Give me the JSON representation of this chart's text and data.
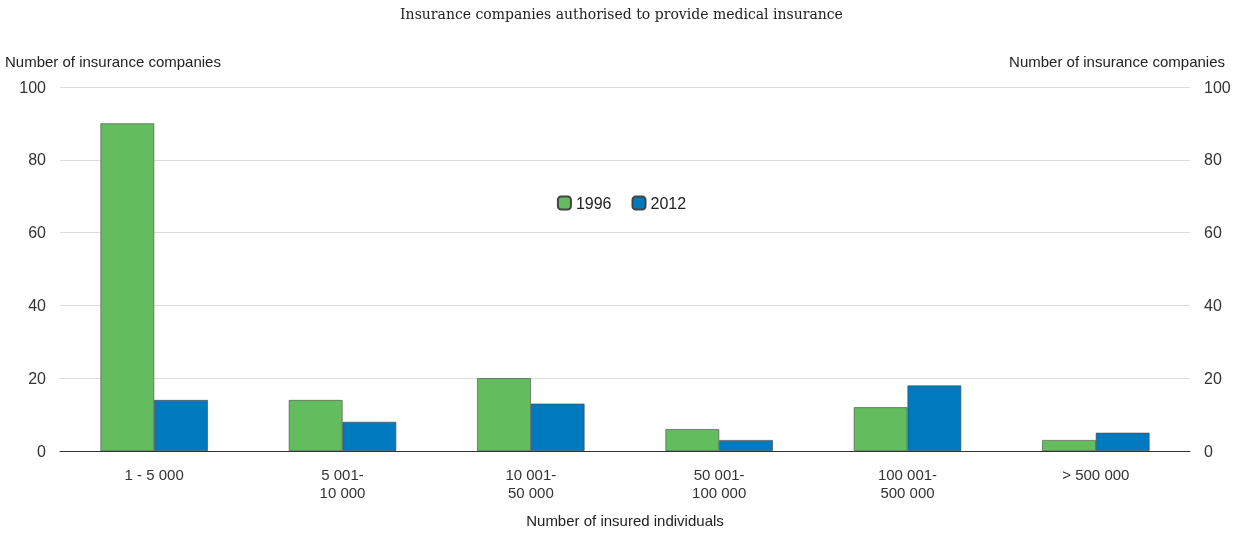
{
  "chart_data": {
    "type": "bar",
    "subtitle": "Insurance companies authorised to provide medical insurance",
    "xlabel": "Number of insured individuals",
    "ylabel": "Number of insurance companies",
    "y2label": "Number of insurance companies",
    "categories": [
      "1 - 5 000",
      "5 001-\n10 000",
      "10 001-\n50 000",
      "50 001-\n100 000",
      "100 001-\n500 000",
      "> 500 000"
    ],
    "series": [
      {
        "name": "1996",
        "color": "#63bd5f",
        "values": [
          90,
          14,
          20,
          6,
          12,
          3
        ]
      },
      {
        "name": "2012",
        "color": "#0079bf",
        "values": [
          14,
          8,
          13,
          3,
          18,
          5
        ]
      }
    ],
    "ylim": [
      0,
      100
    ],
    "yticks": [
      0,
      20,
      40,
      60,
      80,
      100
    ],
    "y2lim": [
      0,
      100
    ],
    "y2ticks": [
      0,
      20,
      40,
      60,
      80,
      100
    ],
    "grid": "y",
    "legend": "top"
  }
}
